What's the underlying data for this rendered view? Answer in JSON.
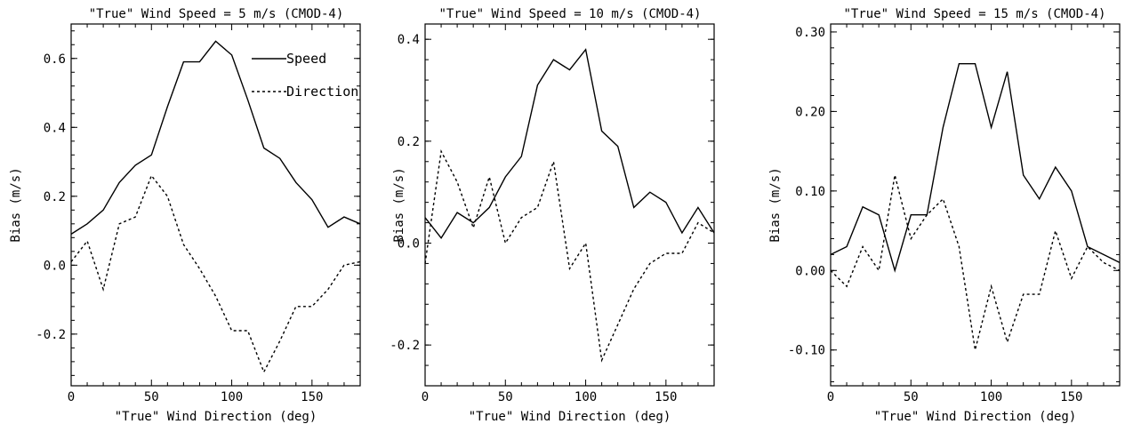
{
  "chart_data": [
    {
      "type": "line",
      "title": "\"True\" Wind Speed = 5 m/s (CMOD-4)",
      "xlabel": "\"True\" Wind Direction (deg)",
      "ylabel": "Bias (m/s)",
      "xlim": [
        0,
        180
      ],
      "ylim": [
        -0.35,
        0.7
      ],
      "xticks": [
        0,
        50,
        100,
        150
      ],
      "xtick_labels": [
        "0",
        "50",
        "100",
        "150"
      ],
      "yticks": [
        -0.2,
        0.0,
        0.2,
        0.4,
        0.6
      ],
      "ytick_labels": [
        "-0.2",
        "0.0",
        "0.2",
        "0.4",
        "0.6"
      ],
      "legend": {
        "position": "top-right",
        "entries": [
          "Speed",
          "Direction"
        ]
      },
      "x": [
        0,
        10,
        20,
        30,
        40,
        50,
        60,
        70,
        80,
        90,
        100,
        110,
        120,
        130,
        140,
        150,
        160,
        170,
        180
      ],
      "series": [
        {
          "name": "Speed",
          "style": "solid",
          "values": [
            0.09,
            0.12,
            0.16,
            0.24,
            0.29,
            0.32,
            0.46,
            0.59,
            0.59,
            0.65,
            0.61,
            0.48,
            0.34,
            0.31,
            0.24,
            0.19,
            0.11,
            0.14,
            0.12
          ]
        },
        {
          "name": "Direction",
          "style": "dashed",
          "values": [
            0.01,
            0.07,
            -0.07,
            0.12,
            0.14,
            0.26,
            0.2,
            0.06,
            -0.01,
            -0.09,
            -0.19,
            -0.19,
            -0.31,
            -0.22,
            -0.12,
            -0.12,
            -0.07,
            0.0,
            0.01
          ]
        }
      ]
    },
    {
      "type": "line",
      "title": "\"True\" Wind Speed = 10 m/s (CMOD-4)",
      "xlabel": "\"True\" Wind Direction (deg)",
      "ylabel": "Bias (m/s)",
      "xlim": [
        0,
        180
      ],
      "ylim": [
        -0.28,
        0.43
      ],
      "xticks": [
        0,
        50,
        100,
        150
      ],
      "xtick_labels": [
        "0",
        "50",
        "100",
        "150"
      ],
      "yticks": [
        -0.2,
        0.0,
        0.2,
        0.4
      ],
      "ytick_labels": [
        "-0.2",
        "0.0",
        "0.2",
        "0.4"
      ],
      "x": [
        0,
        10,
        20,
        30,
        40,
        50,
        60,
        70,
        80,
        90,
        100,
        110,
        120,
        130,
        140,
        150,
        160,
        170,
        180
      ],
      "series": [
        {
          "name": "Speed",
          "style": "solid",
          "values": [
            0.05,
            0.01,
            0.06,
            0.04,
            0.07,
            0.13,
            0.17,
            0.31,
            0.36,
            0.34,
            0.38,
            0.22,
            0.19,
            0.07,
            0.1,
            0.08,
            0.02,
            0.07,
            0.02
          ]
        },
        {
          "name": "Direction",
          "style": "dashed",
          "values": [
            -0.04,
            0.18,
            0.12,
            0.03,
            0.13,
            0.0,
            0.05,
            0.07,
            0.16,
            -0.05,
            0.0,
            -0.23,
            -0.16,
            -0.09,
            -0.04,
            -0.02,
            -0.02,
            0.04,
            0.02
          ]
        }
      ]
    },
    {
      "type": "line",
      "title": "\"True\" Wind Speed = 15 m/s (CMOD-4)",
      "xlabel": "\"True\" Wind Direction (deg)",
      "ylabel": "Bias (m/s)",
      "xlim": [
        0,
        180
      ],
      "ylim": [
        -0.145,
        0.31
      ],
      "xticks": [
        0,
        50,
        100,
        150
      ],
      "xtick_labels": [
        "0",
        "50",
        "100",
        "150"
      ],
      "yticks": [
        -0.1,
        0.0,
        0.1,
        0.2,
        0.3
      ],
      "ytick_labels": [
        "-0.10",
        "0.00",
        "0.10",
        "0.20",
        "0.30"
      ],
      "x": [
        0,
        10,
        20,
        30,
        40,
        50,
        60,
        70,
        80,
        90,
        100,
        110,
        120,
        130,
        140,
        150,
        160,
        170,
        180
      ],
      "series": [
        {
          "name": "Speed",
          "style": "solid",
          "values": [
            0.02,
            0.03,
            0.08,
            0.07,
            0.0,
            0.07,
            0.07,
            0.18,
            0.26,
            0.26,
            0.18,
            0.25,
            0.12,
            0.09,
            0.13,
            0.1,
            0.03,
            0.02,
            0.01
          ]
        },
        {
          "name": "Direction",
          "style": "dashed",
          "values": [
            0.0,
            -0.02,
            0.03,
            0.0,
            0.12,
            0.04,
            0.07,
            0.09,
            0.03,
            -0.1,
            -0.02,
            -0.09,
            -0.03,
            -0.03,
            0.05,
            -0.01,
            0.03,
            0.01,
            0.0
          ]
        }
      ]
    }
  ]
}
